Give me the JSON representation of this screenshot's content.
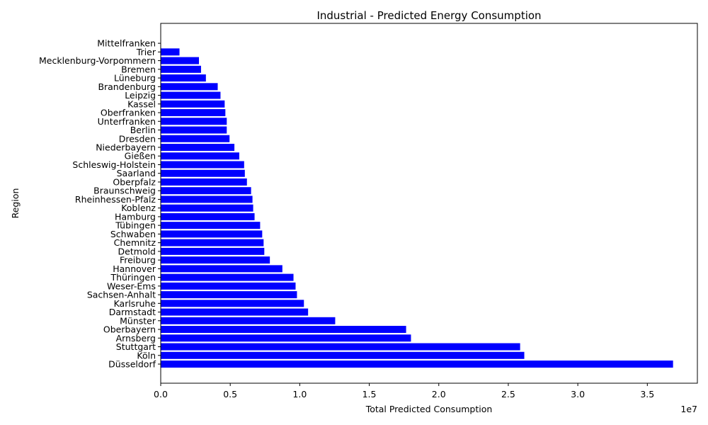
{
  "chart_data": {
    "type": "bar",
    "orientation": "horizontal",
    "title": "Industrial - Predicted Energy Consumption",
    "xlabel": "Total Predicted Consumption",
    "ylabel": "Region",
    "x_scale_label": "1e7",
    "xlim": [
      0,
      38600000.0
    ],
    "x_ticks": [
      0,
      5000000,
      10000000,
      15000000,
      20000000,
      25000000,
      30000000,
      35000000
    ],
    "x_tick_labels": [
      "0.0",
      "0.5",
      "1.0",
      "1.5",
      "2.0",
      "2.5",
      "3.0",
      "3.5"
    ],
    "grid": false,
    "bar_color": "#0000ff",
    "categories": [
      "Düsseldorf",
      "Köln",
      "Stuttgart",
      "Arnsberg",
      "Oberbayern",
      "Münster",
      "Darmstadt",
      "Karlsruhe",
      "Sachsen-Anhalt",
      "Weser-Ems",
      "Thüringen",
      "Hannover",
      "Freiburg",
      "Detmold",
      "Chemnitz",
      "Schwaben",
      "Tübingen",
      "Hamburg",
      "Koblenz",
      "Rheinhessen-Pfalz",
      "Braunschweig",
      "Oberpfalz",
      "Saarland",
      "Schleswig-Holstein",
      "Gießen",
      "Niederbayern",
      "Dresden",
      "Berlin",
      "Unterfranken",
      "Oberfranken",
      "Kassel",
      "Leipzig",
      "Brandenburg",
      "Lüneburg",
      "Bremen",
      "Mecklenburg-Vorpommern",
      "Trier",
      "Mittelfranken"
    ],
    "values": [
      36850000,
      26150000,
      25850000,
      18000000,
      17650000,
      12550000,
      10600000,
      10300000,
      9800000,
      9700000,
      9550000,
      8750000,
      7850000,
      7450000,
      7400000,
      7300000,
      7150000,
      6750000,
      6650000,
      6600000,
      6500000,
      6200000,
      6050000,
      6000000,
      5650000,
      5300000,
      4950000,
      4750000,
      4750000,
      4650000,
      4600000,
      4300000,
      4100000,
      3250000,
      2900000,
      2750000,
      1350000,
      0
    ]
  }
}
